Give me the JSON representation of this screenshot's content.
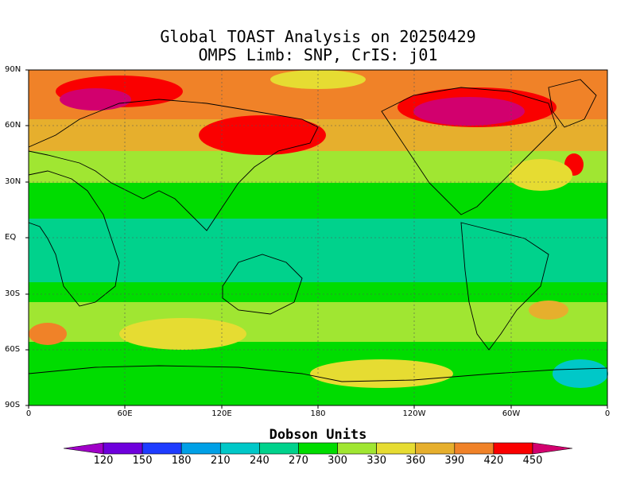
{
  "title": {
    "line1": "Global TOAST Analysis on 20250429",
    "line2": "OMPS Limb: SNP,  CrIS: j01"
  },
  "map": {
    "lat_labels": [
      "90N",
      "60N",
      "30N",
      "EQ",
      "30S",
      "60S",
      "90S"
    ],
    "lon_labels": [
      "0",
      "60E",
      "120E",
      "180",
      "120W",
      "60W",
      "0"
    ]
  },
  "colorbar": {
    "title": "Dobson Units",
    "ticks": [
      "120",
      "150",
      "180",
      "210",
      "240",
      "270",
      "300",
      "330",
      "360",
      "390",
      "420",
      "450"
    ],
    "colors": [
      "#a000c8",
      "#6e00dc",
      "#1e3cff",
      "#00a0e6",
      "#00c8c8",
      "#00d28c",
      "#00dc00",
      "#a0e632",
      "#e6dc32",
      "#e6af2d",
      "#f08228",
      "#fa0000",
      "#d2006e"
    ]
  },
  "legend_colors": {
    "background_band": "#00dc00",
    "tropics": "#00d28c",
    "midlat": "#a0e632",
    "high": "#e6af2d",
    "highest": "#fa0000",
    "peak": "#d2006e"
  }
}
